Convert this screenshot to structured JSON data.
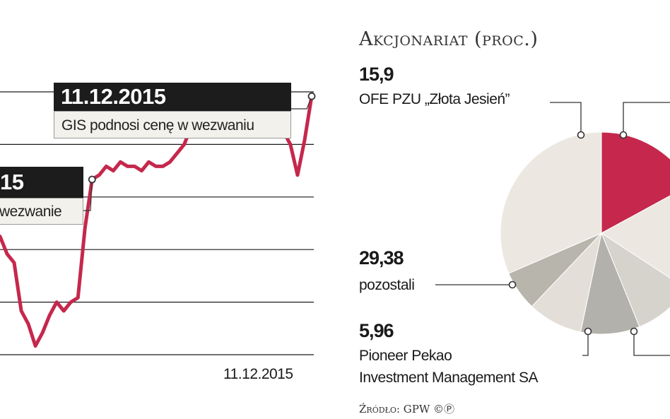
{
  "chart_data": [
    {
      "type": "line",
      "x_end_label": "11.12.2015",
      "annotations": [
        {
          "date": "11.12.2015",
          "text": "GIS podnosi cenę w wezwaniu"
        },
        {
          "date": "15",
          "text": "wezwanie"
        }
      ],
      "grid": true,
      "series": [
        {
          "color": "#c5284c",
          "values": [
            47,
            43,
            41,
            30,
            27,
            22,
            25,
            29,
            32,
            30,
            32,
            33,
            49,
            60,
            61,
            63,
            62,
            64,
            63,
            63,
            62,
            64,
            63,
            63,
            64,
            66,
            68,
            72,
            72,
            73,
            72,
            71,
            70,
            71,
            73,
            74,
            73,
            74,
            74,
            73,
            71,
            68,
            61,
            69,
            79
          ]
        }
      ]
    },
    {
      "type": "pie",
      "title": "Akcjonariat (proc.)",
      "slices": [
        {
          "value": 15.9,
          "label": "OFE PZU „Złota Jesień”",
          "color": "#c5284c"
        },
        {
          "value": 16.0,
          "label": "",
          "color": "#ece8e1"
        },
        {
          "value": 9.0,
          "label": "",
          "color": "#d6d3cd"
        },
        {
          "value": 8.8,
          "label": "",
          "color": "#b3b1ab"
        },
        {
          "value": 8.2,
          "label": "",
          "color": "#e3dfd8"
        },
        {
          "value": 5.96,
          "label": "Pioneer Pekao Investment Management SA",
          "color": "#b8b5ad"
        },
        {
          "value": 29.38,
          "label": "pozostali",
          "color": "#ece8e1"
        }
      ],
      "value_labels": {
        "ofe": "15,9",
        "pozostali": "29,38",
        "pioneer": "5,96"
      },
      "labels": {
        "ofe": "OFE PZU „Złota Jesień”",
        "pozostali": "pozostali",
        "pioneer_line1": "Pioneer Pekao",
        "pioneer_line2": "Investment Management SA"
      }
    }
  ],
  "callouts": {
    "top_date": "11.12.2015",
    "top_text": "GIS podnosi cenę w wezwaniu",
    "mid_date": "15",
    "mid_text": "wezwanie"
  },
  "source": "Źródło: GPW ©Ⓟ",
  "colors": {
    "accent": "#c5284c",
    "grid": "#1a1a1a"
  }
}
